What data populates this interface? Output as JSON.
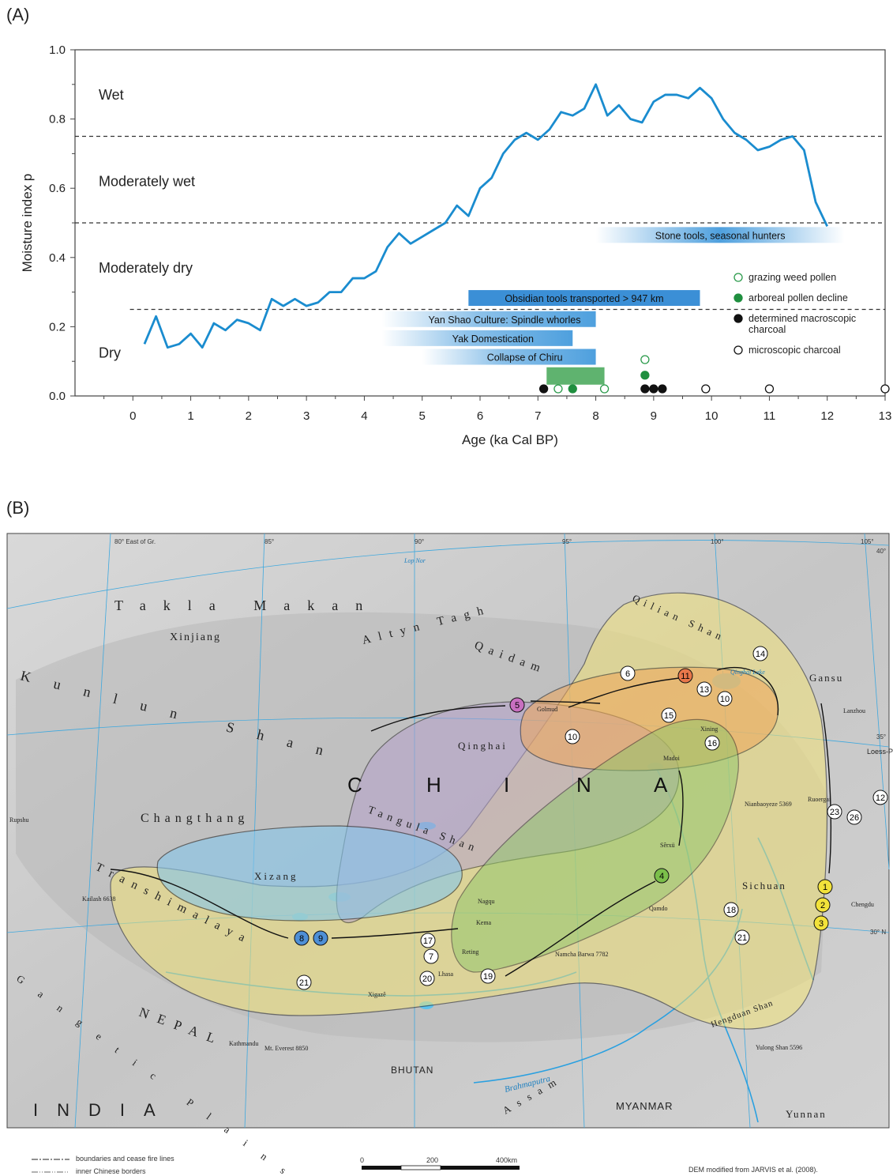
{
  "panel_a_label": "(A)",
  "panel_b_label": "(B)",
  "chart_data": {
    "type": "line",
    "title": "",
    "xlabel": "Age (ka Cal BP)",
    "ylabel": "Moisture index p",
    "xlim": [
      -1,
      13
    ],
    "ylim": [
      0,
      1.0
    ],
    "xticks": [
      0,
      1,
      2,
      3,
      4,
      5,
      6,
      7,
      8,
      9,
      10,
      11,
      12,
      13
    ],
    "yticks": [
      "0.0",
      "0.2",
      "0.4",
      "0.6",
      "0.8",
      "1.0"
    ],
    "ytick_values": [
      0,
      0.2,
      0.4,
      0.6,
      0.8,
      1.0
    ],
    "series": [
      {
        "color": "#1a8ccf",
        "x": [
          0.2,
          0.4,
          0.6,
          0.8,
          1.0,
          1.2,
          1.4,
          1.6,
          1.8,
          2.0,
          2.2,
          2.4,
          2.6,
          2.8,
          3.0,
          3.2,
          3.4,
          3.6,
          3.8,
          4.0,
          4.2,
          4.4,
          4.6,
          4.8,
          5.0,
          5.2,
          5.4,
          5.6,
          5.8,
          6.0,
          6.2,
          6.4,
          6.6,
          6.8,
          7.0,
          7.2,
          7.4,
          7.6,
          7.8,
          8.0,
          8.2,
          8.4,
          8.6,
          8.8,
          9.0,
          9.2,
          9.4,
          9.6,
          9.8,
          10.0,
          10.2,
          10.4,
          10.6,
          10.8,
          11.0,
          11.2,
          11.4,
          11.6,
          11.8,
          12.0
        ],
        "y": [
          0.15,
          0.23,
          0.14,
          0.15,
          0.18,
          0.14,
          0.21,
          0.19,
          0.22,
          0.21,
          0.19,
          0.28,
          0.26,
          0.28,
          0.26,
          0.27,
          0.3,
          0.3,
          0.34,
          0.34,
          0.36,
          0.43,
          0.47,
          0.44,
          0.46,
          0.48,
          0.5,
          0.55,
          0.52,
          0.6,
          0.63,
          0.7,
          0.74,
          0.76,
          0.74,
          0.77,
          0.82,
          0.81,
          0.83,
          0.9,
          0.81,
          0.84,
          0.8,
          0.79,
          0.85,
          0.87,
          0.87,
          0.86,
          0.89,
          0.86,
          0.8,
          0.76,
          0.74,
          0.71,
          0.72,
          0.74,
          0.75,
          0.71,
          0.56,
          0.49
        ]
      }
    ],
    "thresholds": [
      0.25,
      0.5,
      0.75
    ],
    "zones": [
      {
        "label": "Wet",
        "y": 0.87
      },
      {
        "label": "Moderately wet",
        "y": 0.62
      },
      {
        "label": "Moderately dry",
        "y": 0.37
      },
      {
        "label": "Dry",
        "y": 0.125
      }
    ],
    "bars": [
      {
        "label": "Stone tools, seasonal hunters",
        "x0": 8.0,
        "x1": 12.3,
        "y": 0.465,
        "style": "fade-both"
      },
      {
        "label": "Obsidian tools transported > 947 km",
        "x0": 5.8,
        "x1": 9.8,
        "y": 0.283,
        "style": "solid"
      },
      {
        "label": "Yan Shao Culture: Spindle whorles",
        "x0": 4.3,
        "x1": 8.0,
        "y": 0.222,
        "style": "fade-left"
      },
      {
        "label": "Yak Domestication",
        "x0": 4.3,
        "x1": 7.6,
        "y": 0.167,
        "style": "fade-left"
      },
      {
        "label": "Collapse of Chiru",
        "x0": 5.0,
        "x1": 8.0,
        "y": 0.113,
        "style": "fade-left"
      }
    ],
    "green_bar": {
      "x0": 7.15,
      "x1": 8.15,
      "y": 0.06
    },
    "legend": [
      {
        "label": "grazing weed pollen",
        "marker": "open-green"
      },
      {
        "label": "arboreal pollen decline",
        "marker": "filled-green"
      },
      {
        "label": "determined macroscopic charcoal",
        "marker": "filled-black"
      },
      {
        "label": "microscopic charcoal",
        "marker": "open-black"
      }
    ],
    "markers": [
      {
        "x": 7.1,
        "y": 0.02,
        "type": "filled-black"
      },
      {
        "x": 7.35,
        "y": 0.02,
        "type": "open-green"
      },
      {
        "x": 7.6,
        "y": 0.02,
        "type": "filled-green"
      },
      {
        "x": 8.15,
        "y": 0.02,
        "type": "open-green"
      },
      {
        "x": 8.85,
        "y": 0.02,
        "type": "filled-black"
      },
      {
        "x": 9.0,
        "y": 0.02,
        "type": "filled-black"
      },
      {
        "x": 9.15,
        "y": 0.02,
        "type": "filled-black"
      },
      {
        "x": 8.85,
        "y": 0.06,
        "type": "filled-green"
      },
      {
        "x": 8.85,
        "y": 0.105,
        "type": "open-green"
      },
      {
        "x": 9.9,
        "y": 0.02,
        "type": "open-black"
      },
      {
        "x": 11.0,
        "y": 0.02,
        "type": "open-black"
      },
      {
        "x": 13.0,
        "y": 0.02,
        "type": "open-black"
      }
    ]
  },
  "map": {
    "graticule": [
      "80° East of Gr.",
      "85°",
      "90°",
      "95°",
      "100°",
      "105°",
      "40°",
      "35°",
      "30° N"
    ],
    "large_labels": [
      {
        "text": "C",
        "id": "c"
      },
      {
        "text": "H",
        "id": "h"
      },
      {
        "text": "I",
        "id": "i"
      },
      {
        "text": "N",
        "id": "n"
      },
      {
        "text": "A",
        "id": "a"
      }
    ],
    "region_labels": [
      "Takla Makan",
      "Xinjiang",
      "Altyn Tagh",
      "Qaidam",
      "Qilian Shan",
      "Gansu",
      "Kunlun Shan",
      "Qinghai",
      "Changthang",
      "Tangula Shan",
      "Xizang",
      "Transhimalaya",
      "Sichuan",
      "Yunnan",
      "NEPAL",
      "BHUTAN",
      "MYANMAR",
      "INDIA",
      "Gangetic Plains",
      "Assam",
      "Brahmaputra",
      "Hengduan Shan",
      "Loess-Plateau"
    ],
    "places": [
      "Lop Nor",
      "Golmud",
      "Lanzhou",
      "Xining",
      "Madoi",
      "Nianbaoyeze 5369",
      "Ruoergai",
      "Sêrxü",
      "Qamdo",
      "Chengdu",
      "Nagqu",
      "Kema",
      "Reting",
      "Lhasa",
      "Xigazê",
      "Namcha Barwa 7782",
      "Kailash 6638",
      "Rupshu",
      "Kathmandu",
      "Mt. Everest 8850",
      "Yulong Shan 5596",
      "Qinghai Lake"
    ],
    "sites": [
      {
        "n": "1",
        "color": "#f2e23a"
      },
      {
        "n": "2",
        "color": "#f2e23a"
      },
      {
        "n": "3",
        "color": "#f2e23a"
      },
      {
        "n": "4",
        "color": "#7bbf4a"
      },
      {
        "n": "5",
        "color": "#c86fc0"
      },
      {
        "n": "6",
        "color": "#ffffff"
      },
      {
        "n": "7",
        "color": "#ffffff"
      },
      {
        "n": "8",
        "color": "#4e8fd6"
      },
      {
        "n": "9",
        "color": "#4e8fd6"
      },
      {
        "n": "10",
        "color": "#ffffff"
      },
      {
        "n": "11",
        "color": "#e8774a"
      },
      {
        "n": "12",
        "color": "#ffffff"
      },
      {
        "n": "13",
        "color": "#ffffff"
      },
      {
        "n": "14",
        "color": "#ffffff"
      },
      {
        "n": "15",
        "color": "#ffffff"
      },
      {
        "n": "16",
        "color": "#ffffff"
      },
      {
        "n": "17",
        "color": "#ffffff"
      },
      {
        "n": "18",
        "color": "#ffffff"
      },
      {
        "n": "19",
        "color": "#ffffff"
      },
      {
        "n": "20",
        "color": "#ffffff"
      },
      {
        "n": "21",
        "color": "#ffffff"
      },
      {
        "n": "23",
        "color": "#ffffff"
      },
      {
        "n": "26",
        "color": "#ffffff"
      }
    ],
    "footer": {
      "boundary_legend": "boundaries and cease fire lines",
      "inner_legend": "inner Chinese borders",
      "scale_0": "0",
      "scale_200": "200",
      "scale_400": "400km",
      "credit": "DEM modified from JARVIS et al. (2008)."
    }
  }
}
